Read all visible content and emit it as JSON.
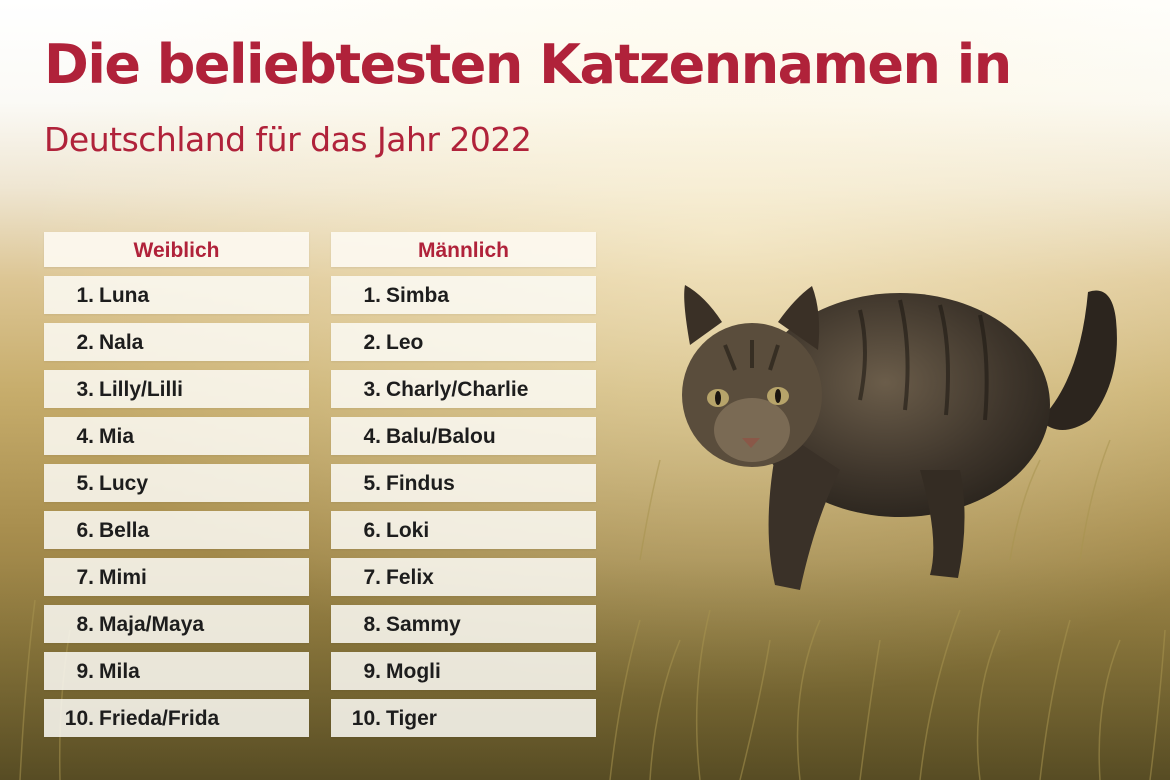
{
  "title": "Die beliebtesten Katzennamen in",
  "subtitle": "Deutschland für das Jahr 2022",
  "colors": {
    "accent": "#b0223a",
    "text": "#1d1d1d",
    "panel": "#fbf8f0"
  },
  "background_image": "tabby-cat-walking-in-grass",
  "female": {
    "header": "Weiblich",
    "items": [
      {
        "rank": "1.",
        "name": "Luna"
      },
      {
        "rank": "2.",
        "name": "Nala"
      },
      {
        "rank": "3.",
        "name": "Lilly/Lilli"
      },
      {
        "rank": "4.",
        "name": "Mia"
      },
      {
        "rank": "5.",
        "name": "Lucy"
      },
      {
        "rank": "6.",
        "name": "Bella"
      },
      {
        "rank": "7.",
        "name": "Mimi"
      },
      {
        "rank": "8.",
        "name": "Maja/Maya"
      },
      {
        "rank": "9.",
        "name": "Mila"
      },
      {
        "rank": "10.",
        "name": "Frieda/Frida"
      }
    ]
  },
  "male": {
    "header": "Männlich",
    "items": [
      {
        "rank": "1.",
        "name": "Simba"
      },
      {
        "rank": "2.",
        "name": "Leo"
      },
      {
        "rank": "3.",
        "name": "Charly/Charlie"
      },
      {
        "rank": "4.",
        "name": "Balu/Balou"
      },
      {
        "rank": "5.",
        "name": "Findus"
      },
      {
        "rank": "6.",
        "name": "Loki"
      },
      {
        "rank": "7.",
        "name": "Felix"
      },
      {
        "rank": "8.",
        "name": "Sammy"
      },
      {
        "rank": "9.",
        "name": "Mogli"
      },
      {
        "rank": "10.",
        "name": "Tiger"
      }
    ]
  }
}
